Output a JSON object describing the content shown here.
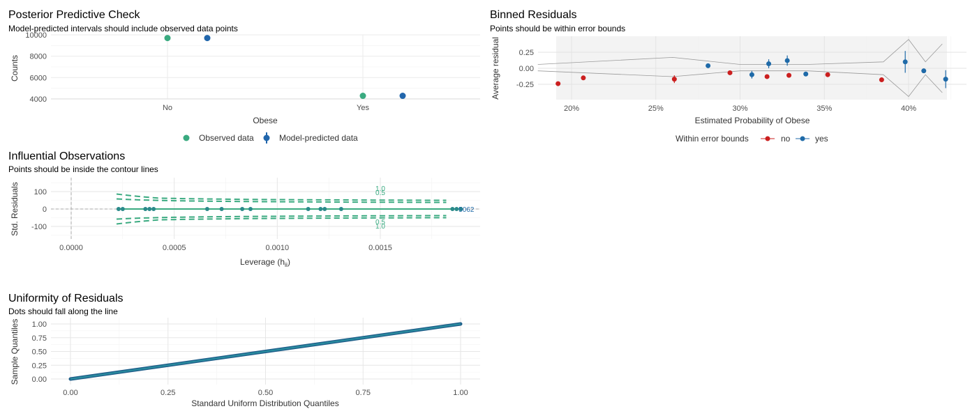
{
  "colors": {
    "observed": "#3aaa80",
    "predicted": "#2166ac",
    "no": "#cb1f1f",
    "yes": "#1f6aa8",
    "contour": "#3aaa80",
    "uniform_line": "#2a8fa0",
    "uniform_points": "#1f5f8a"
  },
  "chart_data": [
    {
      "id": "ppc",
      "type": "scatter",
      "title": "Posterior Predictive Check",
      "subtitle": "Model-predicted intervals should include observed data points",
      "xlabel": "Obese",
      "ylabel": "Counts",
      "categories": [
        "No",
        "Yes"
      ],
      "yticks": [
        "4000",
        "6000",
        "8000",
        "10000"
      ],
      "ylim": [
        4000,
        10000
      ],
      "series": [
        {
          "name": "Observed data",
          "values": [
            9700,
            4290
          ]
        },
        {
          "name": "Model-predicted data",
          "values": [
            9700,
            4290
          ],
          "interval_low": [
            9640,
            4230
          ],
          "interval_high": [
            9760,
            4350
          ]
        }
      ],
      "legend": "bottom",
      "grid": true
    },
    {
      "id": "binned",
      "type": "scatter",
      "title": "Binned Residuals",
      "subtitle": "Points should be within error bounds",
      "xlabel": "Estimated Probability of Obese",
      "ylabel": "Average residual",
      "xticks": [
        "20%",
        "25%",
        "30%",
        "35%",
        "40%"
      ],
      "yticks": [
        "-0.25",
        "0.00",
        "0.25"
      ],
      "xlim": [
        0.18,
        0.43
      ],
      "ylim": [
        -0.45,
        0.45
      ],
      "legend_title": "Within error bounds",
      "legend_labels": [
        "no",
        "yes"
      ],
      "legend": "bottom",
      "bounds_upper": [
        [
          0.18,
          0.06
        ],
        [
          0.26,
          0.17
        ],
        [
          0.3,
          0.06
        ],
        [
          0.34,
          0.06
        ],
        [
          0.385,
          0.1
        ],
        [
          0.4,
          0.45
        ],
        [
          0.41,
          0.1
        ],
        [
          0.42,
          0.38
        ]
      ],
      "bounds_lower": [
        [
          0.18,
          -0.04
        ],
        [
          0.26,
          -0.13
        ],
        [
          0.3,
          -0.04
        ],
        [
          0.34,
          -0.04
        ],
        [
          0.385,
          -0.1
        ],
        [
          0.4,
          -0.44
        ],
        [
          0.41,
          -0.1
        ],
        [
          0.42,
          -0.38
        ]
      ],
      "points": [
        {
          "x": 0.192,
          "y": -0.24,
          "within": "no"
        },
        {
          "x": 0.207,
          "y": -0.15,
          "within": "no"
        },
        {
          "x": 0.261,
          "y": -0.17,
          "within": "no",
          "err": 0.06
        },
        {
          "x": 0.281,
          "y": 0.04,
          "within": "yes"
        },
        {
          "x": 0.294,
          "y": -0.07,
          "within": "no"
        },
        {
          "x": 0.307,
          "y": -0.1,
          "within": "yes",
          "err": 0.06
        },
        {
          "x": 0.316,
          "y": -0.13,
          "within": "no"
        },
        {
          "x": 0.317,
          "y": 0.07,
          "within": "yes",
          "err": 0.07
        },
        {
          "x": 0.328,
          "y": 0.12,
          "within": "yes",
          "err": 0.08
        },
        {
          "x": 0.329,
          "y": -0.11,
          "within": "no"
        },
        {
          "x": 0.339,
          "y": -0.09,
          "within": "yes"
        },
        {
          "x": 0.352,
          "y": -0.1,
          "within": "no"
        },
        {
          "x": 0.384,
          "y": -0.18,
          "within": "no"
        },
        {
          "x": 0.398,
          "y": 0.1,
          "within": "yes",
          "err": 0.17
        },
        {
          "x": 0.409,
          "y": -0.04,
          "within": "yes"
        },
        {
          "x": 0.422,
          "y": -0.17,
          "within": "yes",
          "err": 0.14
        }
      ]
    },
    {
      "id": "influential",
      "type": "scatter",
      "title": "Influential Observations",
      "subtitle": "Points should be inside the contour lines",
      "xlabel": "Leverage (h",
      "xlabel_sub": "ii",
      "xlabel_close": ")",
      "ylabel": "Std. Residuals",
      "xticks": [
        "0.0000",
        "0.0005",
        "0.0010",
        "0.0015"
      ],
      "yticks": [
        "-100",
        "0",
        "100"
      ],
      "xlim": [
        -0.0001,
        0.00196
      ],
      "ylim": [
        -170,
        170
      ],
      "contour_labels_upper": [
        "1.0",
        "0.5"
      ],
      "contour_labels_lower": [
        "0.5",
        "1.0"
      ],
      "point_labels": "5062",
      "leverage": [
        0.00023,
        0.00025,
        0.00036,
        0.00038,
        0.0004,
        0.00066,
        0.00073,
        0.00083,
        0.00087,
        0.00115,
        0.00121,
        0.00123,
        0.00131,
        0.00185,
        0.00187,
        0.00189
      ],
      "residuals": [
        0,
        0,
        0,
        0,
        0,
        0,
        0,
        0,
        0,
        0,
        0,
        0,
        0,
        0,
        0,
        0
      ]
    },
    {
      "id": "uniform",
      "type": "line",
      "title": "Uniformity of Residuals",
      "subtitle": "Dots should fall along the line",
      "xlabel": "Standard Uniform Distribution Quantiles",
      "ylabel": "Sample Quantiles",
      "xticks": [
        "0.00",
        "0.25",
        "0.50",
        "0.75",
        "1.00"
      ],
      "yticks": [
        "0.00",
        "0.25",
        "0.50",
        "0.75",
        "1.00"
      ],
      "xlim": [
        -0.05,
        1.05
      ],
      "ylim": [
        -0.03,
        1.03
      ],
      "x": [
        0.0,
        1.0
      ],
      "y": [
        0.0,
        1.0
      ]
    }
  ]
}
